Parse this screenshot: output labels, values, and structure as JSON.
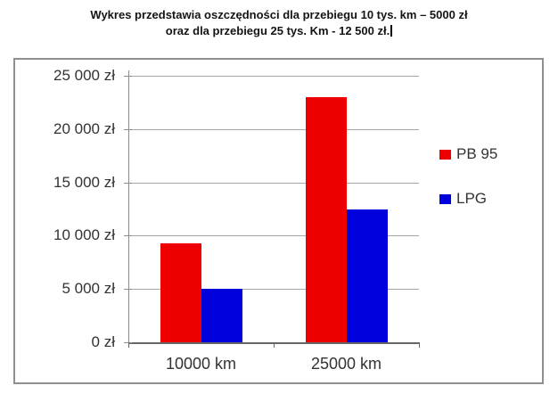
{
  "title": {
    "line1": "Wykres przedstawia oszczędności dla przebiegu 10 tys. km – 5000 zł",
    "line2": "oraz dla przebiegu 25 tys. Km - 12 500 zł."
  },
  "chart_data": {
    "type": "bar",
    "categories": [
      "10000 km",
      "25000 km"
    ],
    "series": [
      {
        "name": "PB 95",
        "color": "#ee0000",
        "values": [
          9300,
          23000
        ]
      },
      {
        "name": "LPG",
        "color": "#0000dd",
        "values": [
          5000,
          12500
        ]
      }
    ],
    "yticks": [
      0,
      5000,
      10000,
      15000,
      20000,
      25000
    ],
    "ytick_labels": [
      "0 zł",
      "5 000 zł",
      "10 000 zł",
      "15 000 zł",
      "20 000 zł",
      "25 000 zł"
    ],
    "ylim": [
      0,
      25000
    ],
    "xlabel": "",
    "ylabel": "",
    "grid": true,
    "legend_position": "right",
    "colors": {
      "pb95": "#ee0000",
      "lpg": "#0000dd",
      "gridline": "#a6a6a6",
      "axis": "#666666",
      "border": "#8f8f8f",
      "text": "#333333"
    }
  }
}
